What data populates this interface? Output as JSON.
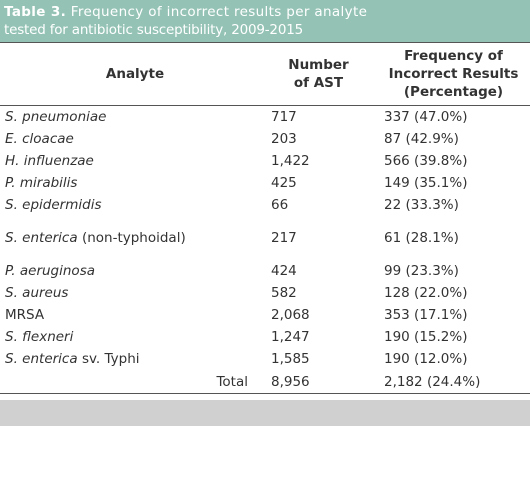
{
  "caption": {
    "label": "Table 3.",
    "line1": "Frequency of incorrect results per analyte",
    "line2": "tested for antibiotic susceptibility, 2009-2015"
  },
  "headers": {
    "analyte": "Analyte",
    "number_line1": "Number",
    "number_line2": "of AST",
    "freq_line1": "Frequency of",
    "freq_line2": "Incorrect Results",
    "freq_line3": "(Percentage)"
  },
  "rows": [
    {
      "genus": "S.",
      "species": "pneumoniae",
      "suffix": "",
      "number": "717",
      "freq": "337 (47.0%)"
    },
    {
      "genus": "E.",
      "species": "cloacae",
      "suffix": "",
      "number": "203",
      "freq": "87 (42.9%)"
    },
    {
      "genus": "H.",
      "species": "influenzae",
      "suffix": "",
      "number": "1,422",
      "freq": "566 (39.8%)"
    },
    {
      "genus": "P.",
      "species": "mirabilis",
      "suffix": "",
      "number": "425",
      "freq": "149 (35.1%)"
    },
    {
      "genus": "S.",
      "species": "epidermidis",
      "suffix": "",
      "number": "66",
      "freq": "22 (33.3%)"
    },
    {
      "genus": "S.",
      "species": "enterica",
      "suffix": "(non-typhoidal)",
      "number": "217",
      "freq": "61 (28.1%)"
    },
    {
      "genus": "P.",
      "species": "aeruginosa",
      "suffix": "",
      "number": "424",
      "freq": "99 (23.3%)"
    },
    {
      "genus": "S.",
      "species": "aureus",
      "suffix": "",
      "number": "582",
      "freq": "128 (22.0%)"
    },
    {
      "genus": "",
      "species": "MRSA",
      "suffix": "",
      "number": "2,068",
      "freq": "353 (17.1%)"
    },
    {
      "genus": "S.",
      "species": "flexneri",
      "suffix": "",
      "number": "1,247",
      "freq": "190 (15.2%)"
    },
    {
      "genus": "S.",
      "species": "enterica",
      "suffix": "sv. Typhi",
      "number": "1,585",
      "freq": "190 (12.0%)"
    }
  ],
  "total": {
    "label": "Total",
    "number": "8,956",
    "freq": "2,182 (24.4%)"
  },
  "colors": {
    "caption_bg": "#94c3b5",
    "footer_band": "#d0d0d0"
  }
}
